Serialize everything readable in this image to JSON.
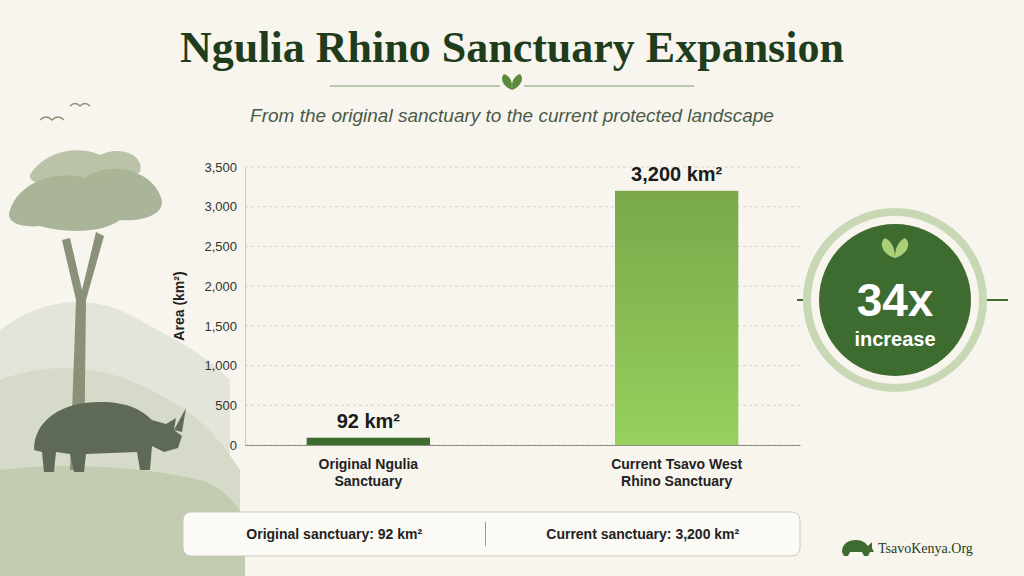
{
  "chart_data": {
    "type": "bar",
    "title": "Ngulia Rhino Sanctuary Expansion",
    "subtitle": "From the original sanctuary to the current protected landscape",
    "categories": [
      "Original Ngulia Sanctuary",
      "Current Tsavo West Rhino Sanctuary"
    ],
    "values": [
      92,
      3200
    ],
    "value_labels": [
      "92 km²",
      "3,200 km²"
    ],
    "data_labels": true,
    "colors": [
      "#3e6b2f",
      "#7aa84a"
    ],
    "ylabel": "Area (km²)",
    "ylim": [
      0,
      3500
    ],
    "yticks": [
      0,
      500,
      {
        "value": 1000,
        "label": "1,000"
      },
      {
        "value": 1500,
        "label": "1,500"
      },
      {
        "value": 2000,
        "label": "2,000"
      },
      {
        "value": 2500,
        "label": "2,500"
      },
      {
        "value": 3000,
        "label": "3,000"
      },
      {
        "value": 3500,
        "label": "3,500"
      }
    ],
    "grid": true,
    "annotations": [
      "34x",
      "increase"
    ],
    "footer": [
      "Original sanctuary: 92 km²",
      "Current sanctuary: 3,200 km²"
    ],
    "source": "TsavoKenya.Org"
  }
}
